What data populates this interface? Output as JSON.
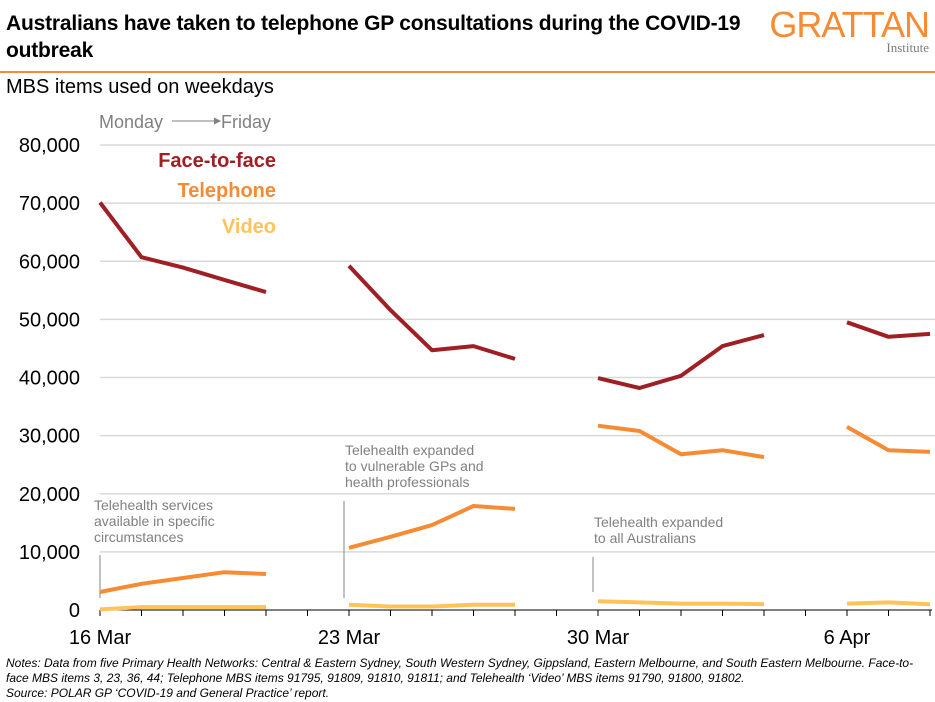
{
  "header": {
    "title": "Australians have taken to telephone GP consultations during the COVID-19 outbreak",
    "logo_main": "GRATTAN",
    "logo_sub": "Institute",
    "subtitle": "MBS items used on weekdays"
  },
  "notes": {
    "line1": "Notes: Data from five Primary Health Networks: Central & Eastern Sydney, South Western Sydney, Gippsland, Eastern Melbourne, and South Eastern Melbourne. Face-to-face MBS items 3, 23, 36, 44; Telephone MBS items 91795, 91809, 91810, 91811; and Telehealth ‘Video’ MBS items 91790, 91800, 91802.",
    "line2": "Source: POLAR GP ‘COVID-19 and General Practice’ report."
  },
  "colors": {
    "face_to_face": "#9e1f24",
    "telephone": "#f68b33",
    "video": "#ffc35a",
    "brand": "#f68b33",
    "annotation": "#808080",
    "grid": "#d9d9d9"
  },
  "chart_data": {
    "type": "line",
    "title": "MBS items used on weekdays",
    "xlabel": "",
    "ylabel": "",
    "ylim": [
      0,
      80000
    ],
    "yticks": [
      0,
      10000,
      20000,
      30000,
      40000,
      50000,
      60000,
      70000,
      80000
    ],
    "ytick_labels": [
      "0",
      "10,000",
      "20,000",
      "30,000",
      "40,000",
      "50,000",
      "60,000",
      "70,000",
      "80,000"
    ],
    "grid": true,
    "x_slots_total": 20,
    "xtick_labels": [
      {
        "slot": 0,
        "label": "16 Mar"
      },
      {
        "slot": 6,
        "label": "23 Mar"
      },
      {
        "slot": 12,
        "label": "30 Mar"
      },
      {
        "slot": 18,
        "label": "6 Apr"
      }
    ],
    "day_hint": {
      "from": "Monday",
      "to": "Friday"
    },
    "legend": [
      "Face-to-face",
      "Telephone",
      "Video"
    ],
    "legend_position": "top-left",
    "weeks": [
      {
        "start": "16 Mar",
        "start_slot": 0
      },
      {
        "start": "23 Mar",
        "start_slot": 6
      },
      {
        "start": "30 Mar",
        "start_slot": 12
      },
      {
        "start": "6 Apr",
        "start_slot": 18
      }
    ],
    "series": [
      {
        "name": "Face-to-face",
        "weeks": [
          [
            70100,
            60700,
            58900,
            56800,
            54700
          ],
          [
            59200,
            51600,
            44700,
            45400,
            43200
          ],
          [
            39900,
            38200,
            40300,
            45400,
            47300
          ],
          [
            49500,
            47000,
            47500
          ]
        ]
      },
      {
        "name": "Telephone",
        "weeks": [
          [
            3100,
            4500,
            5500,
            6500,
            6200
          ],
          [
            10700,
            12600,
            14600,
            17900,
            17400
          ],
          [
            31700,
            30800,
            26800,
            27500,
            26300
          ],
          [
            31500,
            27500,
            27200
          ]
        ]
      },
      {
        "name": "Video",
        "weeks": [
          [
            100,
            500,
            500,
            500,
            500
          ],
          [
            900,
            600,
            600,
            900,
            900
          ],
          [
            1500,
            1300,
            1100,
            1100,
            1000
          ],
          [
            1100,
            1300,
            1000
          ]
        ]
      }
    ],
    "annotations": [
      {
        "slot": 0,
        "lines": [
          "Telehealth services",
          "available in specific",
          "circumstances"
        ]
      },
      {
        "slot": 6,
        "lines": [
          "Telehealth expanded",
          "to vulnerable GPs and",
          "health professionals"
        ]
      },
      {
        "slot": 12,
        "lines": [
          "Telehealth expanded",
          "to all Australians"
        ]
      }
    ]
  }
}
